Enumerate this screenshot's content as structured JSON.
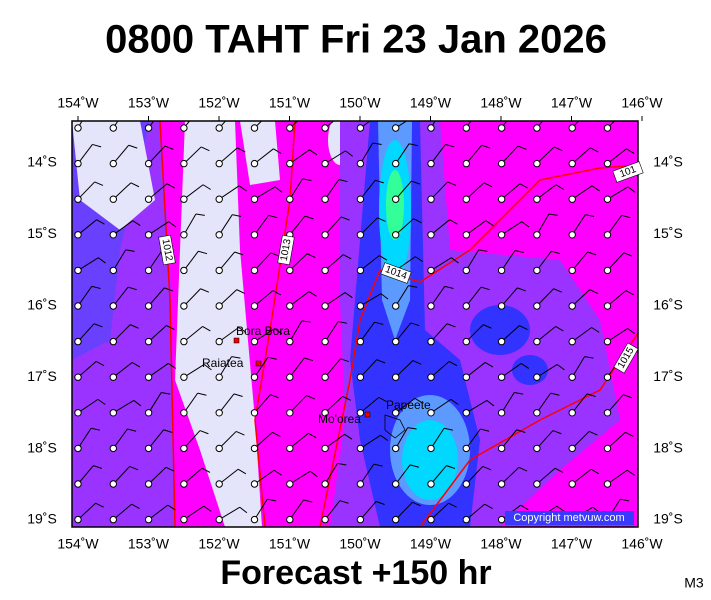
{
  "header": {
    "title": "0800 TAHT Fri 23 Jan 2026"
  },
  "map": {
    "lon_labels": [
      "154˚W",
      "153˚W",
      "152˚W",
      "151˚W",
      "150˚W",
      "149˚W",
      "148˚W",
      "147˚W",
      "146˚W"
    ],
    "lat_labels": [
      "14˚S",
      "15˚S",
      "16˚S",
      "17˚S",
      "18˚S",
      "19˚S"
    ],
    "places": [
      "Bora Bora",
      "Raiatea",
      "Mo'orea",
      "Papeete"
    ],
    "isobars": [
      "1012",
      "1013",
      "1014",
      "1015",
      "101"
    ],
    "copyright": "Copyright metvuw.com"
  },
  "footer": {
    "forecast": "Forecast +150 hr",
    "code": "M3"
  }
}
